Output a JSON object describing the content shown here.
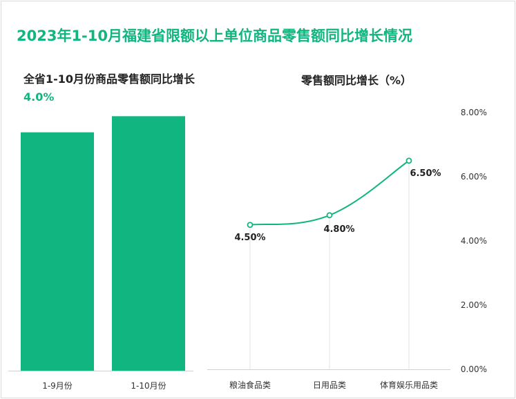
{
  "title": "2023年1-10月福建省限额以上单位商品零售额同比增长情况",
  "chart_data": [
    {
      "type": "bar",
      "title_prefix": "全省1-10月份商品零售额同比增长",
      "title_value": "4.0%",
      "categories": [
        "1-9月份",
        "1-10月份"
      ],
      "values": [
        3.7,
        3.95
      ],
      "ylim": [
        0,
        4.2
      ],
      "grid": false,
      "color": "#10b57f"
    },
    {
      "type": "line",
      "title": "零售额同比增长（%）",
      "categories": [
        "粮油食品类",
        "日用品类",
        "体育娱乐用品类"
      ],
      "values": [
        4.5,
        4.8,
        6.5
      ],
      "data_labels": [
        "4.50%",
        "4.80%",
        "6.50%"
      ],
      "ylim": [
        0,
        8
      ],
      "y_ticks": [
        "0.00%",
        "2.00%",
        "4.00%",
        "6.00%",
        "8.00%"
      ],
      "y_axis_side": "right",
      "color": "#10b57f"
    }
  ]
}
